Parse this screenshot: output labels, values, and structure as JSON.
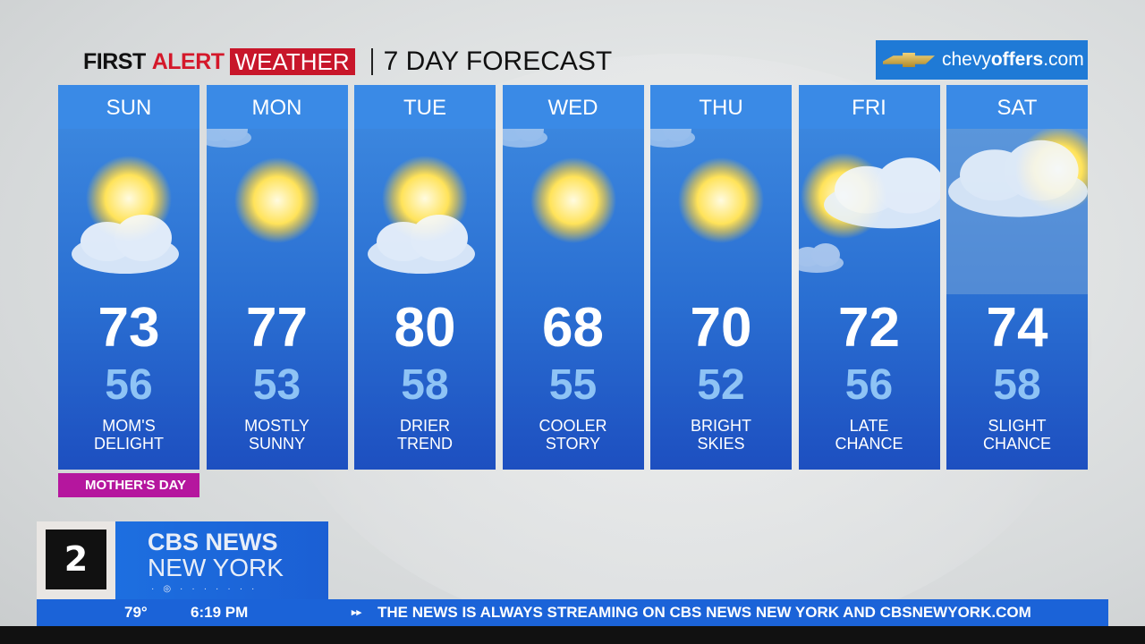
{
  "header": {
    "first": "FIRST",
    "alert": "ALERT",
    "weather": "WEATHER",
    "subtitle": "7 DAY FORECAST"
  },
  "sponsor": {
    "pre": "chevy",
    "bold": "offers",
    "post": ".com"
  },
  "days": [
    {
      "day": "SUN",
      "high": "73",
      "low": "56",
      "desc1": "MOM'S",
      "desc2": "DELIGHT",
      "icon": "partly-cloudy"
    },
    {
      "day": "MON",
      "high": "77",
      "low": "53",
      "desc1": "MOSTLY",
      "desc2": "SUNNY",
      "icon": "sunny"
    },
    {
      "day": "TUE",
      "high": "80",
      "low": "58",
      "desc1": "DRIER",
      "desc2": "TREND",
      "icon": "partly-cloudy"
    },
    {
      "day": "WED",
      "high": "68",
      "low": "55",
      "desc1": "COOLER",
      "desc2": "STORY",
      "icon": "sunny"
    },
    {
      "day": "THU",
      "high": "70",
      "low": "52",
      "desc1": "BRIGHT",
      "desc2": "SKIES",
      "icon": "sunny"
    },
    {
      "day": "FRI",
      "high": "72",
      "low": "56",
      "desc1": "LATE",
      "desc2": "CHANCE",
      "icon": "mostly-cloudy"
    },
    {
      "day": "SAT",
      "high": "74",
      "low": "58",
      "desc1": "SLIGHT",
      "desc2": "CHANCE",
      "icon": "rain"
    }
  ],
  "badge": "MOTHER'S DAY",
  "station": {
    "logo": "2",
    "line1": "CBS NEWS",
    "line2": "NEW YORK"
  },
  "ticker": {
    "temp": "79°",
    "time": "6:19 PM",
    "message": "THE NEWS IS ALWAYS STREAMING ON CBS NEWS NEW YORK AND CBSNEWYORK.COM"
  },
  "colors": {
    "red": "#c8162a",
    "blue": "#1b63d8",
    "magenta": "#b5169e"
  }
}
